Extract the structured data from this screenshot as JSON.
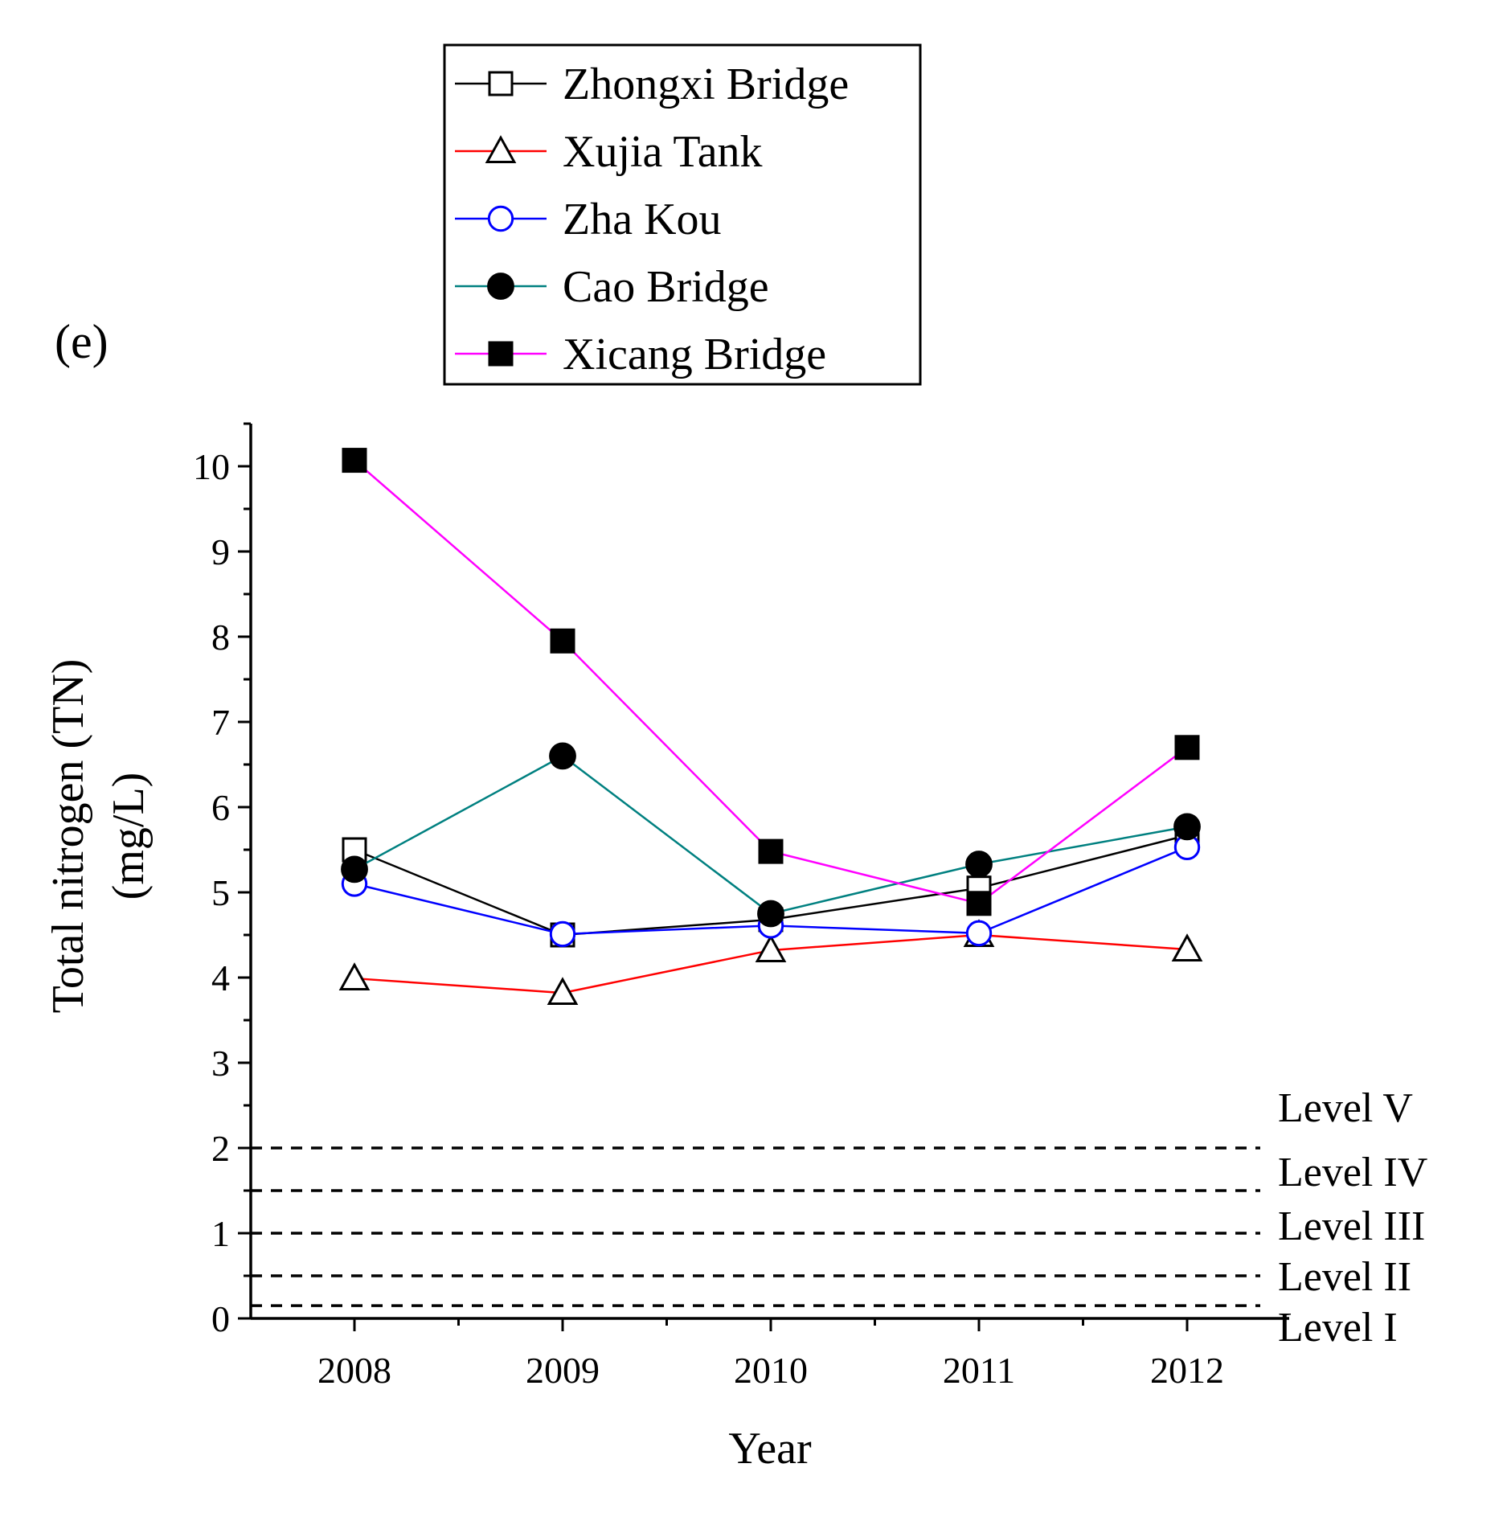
{
  "chart_data": {
    "type": "line",
    "panel_label": "(e)",
    "xlabel": "Year",
    "ylabel_line1": "Total nitrogen (TN)",
    "ylabel_line2": "(mg/L)",
    "categories": [
      "2008",
      "2009",
      "2010",
      "2011",
      "2012"
    ],
    "ylim": [
      0,
      10.5
    ],
    "yticks": [
      "0",
      "1",
      "2",
      "3",
      "4",
      "5",
      "6",
      "7",
      "8",
      "9",
      "10"
    ],
    "series": [
      {
        "name": "Zhongxi Bridge",
        "color": "#000000",
        "marker": "square-open",
        "values": [
          5.5,
          4.5,
          4.68,
          5.05,
          5.67
        ]
      },
      {
        "name": "Xujia Tank",
        "color": "#ff0000",
        "marker": "triangle-open",
        "values": [
          3.99,
          3.82,
          4.32,
          4.5,
          4.33
        ]
      },
      {
        "name": "Zha Kou",
        "color": "#0000ff",
        "marker": "circle-open",
        "values": [
          5.1,
          4.51,
          4.61,
          4.52,
          5.53
        ]
      },
      {
        "name": "Cao Bridge",
        "color": "#008080",
        "marker": "circle-filled",
        "values": [
          5.27,
          6.6,
          4.75,
          5.33,
          5.77
        ]
      },
      {
        "name": "Xicang Bridge",
        "color": "#ff00ff",
        "marker": "square-filled",
        "values": [
          10.07,
          7.95,
          5.48,
          4.87,
          6.7
        ]
      }
    ],
    "reference_lines": [
      {
        "label": "Level V",
        "value": 2.0
      },
      {
        "label": "Level IV",
        "value": 1.5
      },
      {
        "label": "Level III",
        "value": 1.0
      },
      {
        "label": "Level II",
        "value": 0.5
      },
      {
        "label": "Level I",
        "value": 0.15
      }
    ],
    "legend_position": "top"
  }
}
